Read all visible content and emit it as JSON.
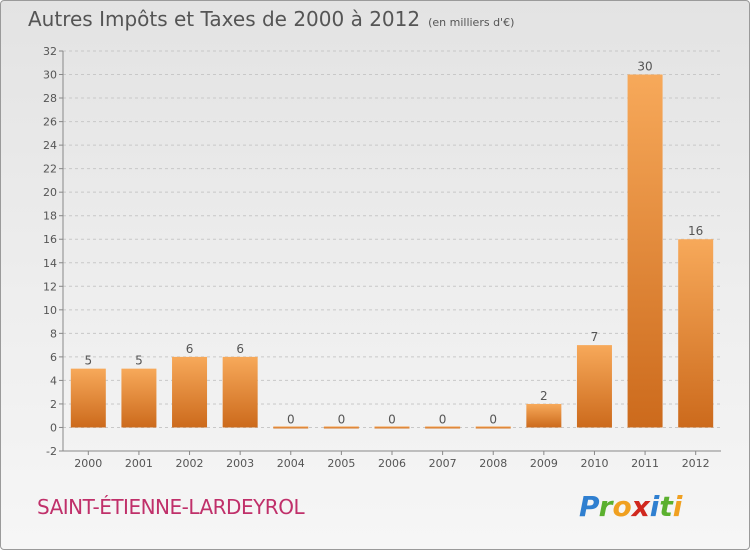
{
  "title": "Autres Impôts et Taxes de 2000 à 2012",
  "subtitle": "(en milliers d'€)",
  "commune": "SAINT-ÉTIENNE-LARDEYROL",
  "logo_text": "Proxiti",
  "colors": {
    "bar_light": "#f7a95a",
    "bar_dark": "#cc6a1c",
    "grid": "#c8c8c8",
    "commune": "#c0306a",
    "text": "#555555"
  },
  "chart_data": {
    "type": "bar",
    "title": "Autres Impôts et Taxes de 2000 à 2012",
    "subtitle": "(en milliers d'€)",
    "categories": [
      "2000",
      "2001",
      "2002",
      "2003",
      "2004",
      "2005",
      "2006",
      "2007",
      "2008",
      "2009",
      "2010",
      "2011",
      "2012"
    ],
    "values": [
      5,
      5,
      6,
      6,
      0,
      0,
      0,
      0,
      0,
      2,
      7,
      30,
      16
    ],
    "ylim": [
      -2,
      32
    ],
    "yticks": [
      -2,
      0,
      2,
      4,
      6,
      8,
      10,
      12,
      14,
      16,
      18,
      20,
      22,
      24,
      26,
      28,
      30,
      32
    ],
    "grid": true,
    "xlabel": "",
    "ylabel": ""
  }
}
